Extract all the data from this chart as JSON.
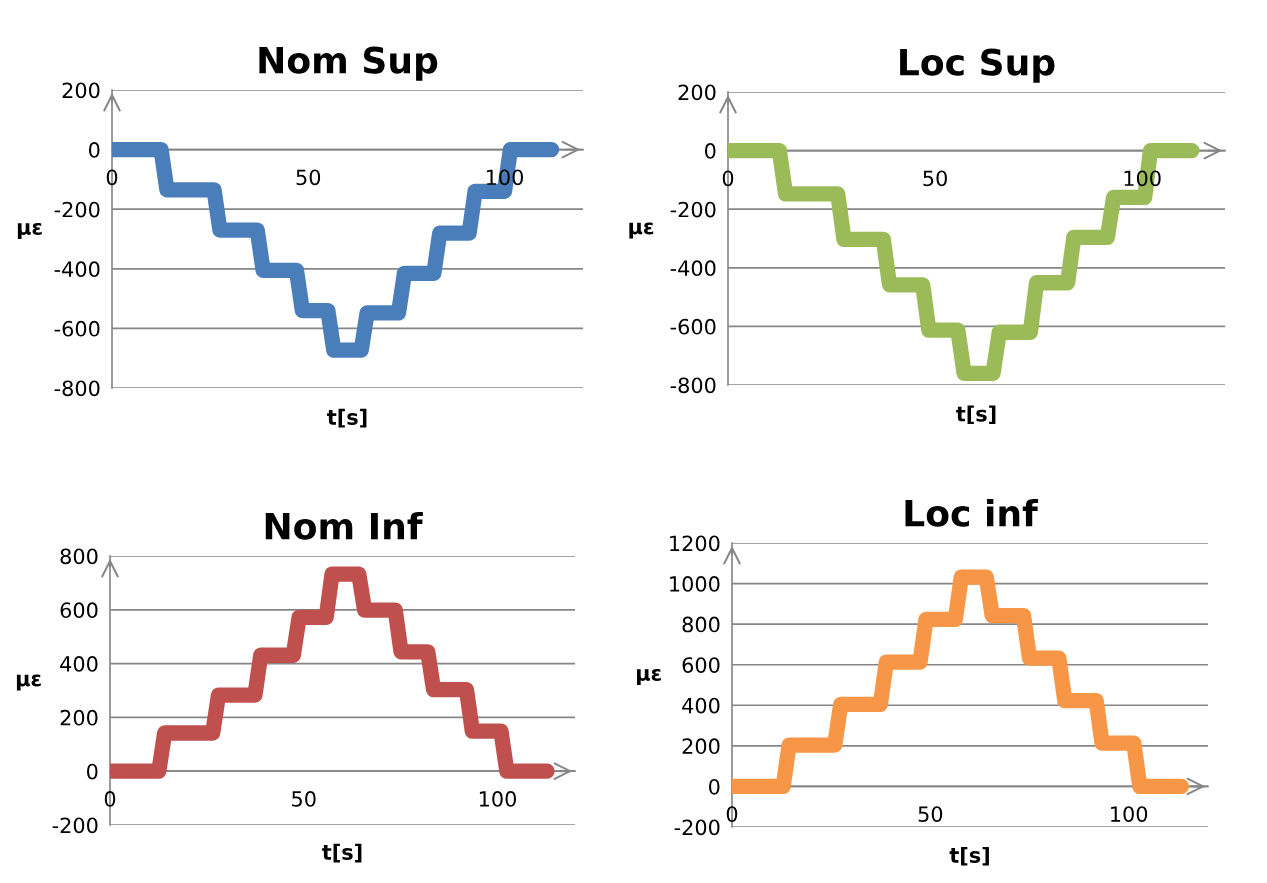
{
  "chart_data": [
    {
      "type": "line",
      "title": "Nom Sup",
      "xlabel": "t[s]",
      "ylabel": "με",
      "xlim": [
        0,
        120
      ],
      "xticks": [
        0,
        50,
        100
      ],
      "ylim": [
        -800,
        200
      ],
      "yticks": [
        -800,
        -600,
        -400,
        -200,
        0,
        200
      ],
      "grid": "y",
      "x": [
        0,
        12.5,
        14,
        26,
        27.5,
        37,
        38.5,
        47,
        48.5,
        55,
        56.5,
        63.5,
        65,
        73,
        74.5,
        82,
        83.5,
        91,
        92.5,
        100,
        101.5,
        112
      ],
      "series": [
        {
          "color": "#4a7ebb",
          "values": [
            0,
            0,
            -135,
            -135,
            -270,
            -270,
            -405,
            -405,
            -540,
            -540,
            -673,
            -673,
            -548,
            -548,
            -415,
            -415,
            -280,
            -280,
            -140,
            -140,
            0,
            0
          ]
        }
      ]
    },
    {
      "type": "line",
      "title": "Loc Sup",
      "xlabel": "t[s]",
      "ylabel": "με",
      "xlim": [
        0,
        120
      ],
      "xticks": [
        0,
        50,
        100
      ],
      "ylim": [
        -800,
        200
      ],
      "yticks": [
        -800,
        -600,
        -400,
        -200,
        0,
        200
      ],
      "grid": "y",
      "x": [
        0,
        12.4,
        13.9,
        26.5,
        28,
        37.5,
        39,
        47,
        48.5,
        55.5,
        57,
        64,
        65.5,
        73,
        74.5,
        82,
        83.5,
        91.6,
        93.1,
        100.6,
        102,
        112
      ],
      "series": [
        {
          "color": "#9bbb59",
          "values": [
            0,
            0,
            -148,
            -148,
            -303,
            -303,
            -458,
            -458,
            -613,
            -613,
            -760,
            -760,
            -620,
            -620,
            -451,
            -451,
            -296,
            -296,
            -160,
            -160,
            0,
            0
          ]
        }
      ]
    },
    {
      "type": "line",
      "title": "Nom Inf",
      "xlabel": "t[s]",
      "ylabel": "με",
      "xlim": [
        0,
        120
      ],
      "xticks": [
        0,
        50,
        100
      ],
      "ylim": [
        -200,
        800
      ],
      "yticks": [
        -200,
        0,
        200,
        400,
        600,
        800
      ],
      "grid": "y",
      "x": [
        0,
        12.6,
        14.1,
        26.5,
        28,
        37.4,
        38.9,
        47.3,
        48.8,
        55.8,
        57.3,
        64.2,
        65.7,
        73.6,
        75.1,
        82,
        83.5,
        92,
        93.5,
        100.9,
        102.4,
        112.8
      ],
      "series": [
        {
          "color": "#c0504d",
          "values": [
            0,
            0,
            142,
            142,
            283,
            283,
            431,
            431,
            572,
            572,
            733,
            733,
            599,
            599,
            444,
            444,
            303,
            303,
            149,
            149,
            0,
            0
          ]
        }
      ]
    },
    {
      "type": "line",
      "title": "Loc inf",
      "xlabel": "t[s]",
      "ylabel": "με",
      "xlim": [
        0,
        120
      ],
      "xticks": [
        0,
        50,
        100
      ],
      "ylim": [
        -200,
        1200
      ],
      "yticks": [
        -200,
        0,
        200,
        400,
        600,
        800,
        1000,
        1200
      ],
      "grid": "y",
      "x": [
        0,
        12.9,
        14.4,
        25.9,
        27.4,
        37.4,
        38.9,
        47.4,
        48.9,
        56.3,
        57.8,
        64.1,
        65.6,
        73.5,
        75,
        82.4,
        83.9,
        91.8,
        93.3,
        101.3,
        102.8,
        113.3
      ],
      "series": [
        {
          "color": "#f79646",
          "values": [
            0,
            0,
            204,
            204,
            404,
            404,
            613,
            613,
            823,
            823,
            1032,
            1032,
            842,
            842,
            632,
            632,
            423,
            423,
            213,
            213,
            0,
            0
          ]
        }
      ]
    }
  ]
}
